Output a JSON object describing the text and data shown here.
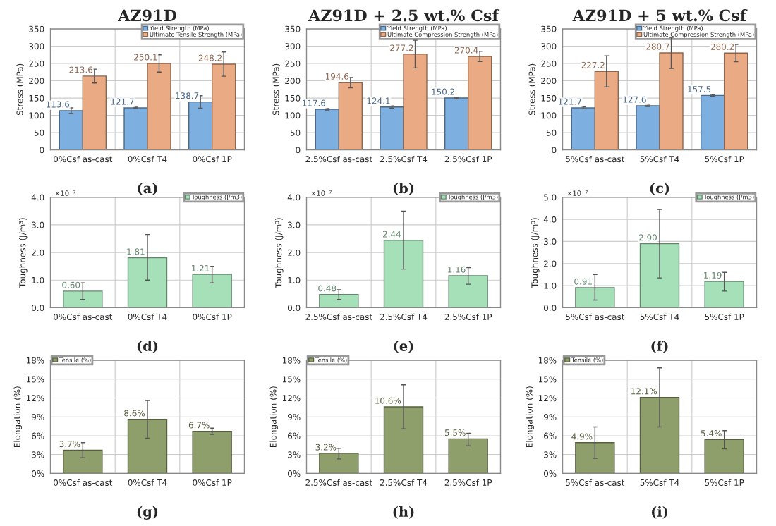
{
  "chart_data": [
    {
      "type": "bar",
      "title": "AZ91D",
      "ylabel": "Stress (MPa)",
      "categories": [
        "0%Csf as-cast",
        "0%Csf T4",
        "0%Csf 1P"
      ],
      "series": [
        {
          "name": "Yield Strength (MPa)",
          "color": "#7dafe0",
          "values": [
            113.6,
            121.7,
            138.7
          ],
          "errors": [
            8,
            2,
            18
          ]
        },
        {
          "name": "Ultimate Tensile Strength (MPa)",
          "color": "#eaaa84",
          "values": [
            213.6,
            250.1,
            248.2
          ],
          "errors": [
            20,
            25,
            35
          ]
        }
      ],
      "ylim": [
        0,
        350
      ],
      "yticks": [
        0,
        50,
        100,
        150,
        200,
        250,
        300,
        350
      ],
      "grid": true,
      "legend": "top right",
      "data_labels": true,
      "annotations": [
        "(a)"
      ]
    },
    {
      "type": "bar",
      "title": "AZ91D + 2.5 wt.% Csf",
      "ylabel": "Stress (MPa)",
      "categories": [
        "2.5%Csf as-cast",
        "2.5%Csf T4",
        "2.5%Csf 1P"
      ],
      "series": [
        {
          "name": "Yield Strength (MPa)",
          "color": "#7dafe0",
          "values": [
            117.6,
            124.1,
            150.2
          ],
          "errors": [
            2,
            3,
            2
          ]
        },
        {
          "name": "Ultimate Compression Strength (MPa)",
          "color": "#eaaa84",
          "values": [
            194.6,
            277.2,
            270.4
          ],
          "errors": [
            15,
            40,
            15
          ]
        }
      ],
      "ylim": [
        0,
        350
      ],
      "yticks": [
        0,
        50,
        100,
        150,
        200,
        250,
        300,
        350
      ],
      "grid": true,
      "legend": "top right",
      "data_labels": true,
      "annotations": [
        "(b)"
      ]
    },
    {
      "type": "bar",
      "title": "AZ91D + 5 wt.% Csf",
      "ylabel": "Stress (MPa)",
      "categories": [
        "5%Csf as-cast",
        "5%Csf T4",
        "5%Csf 1P"
      ],
      "series": [
        {
          "name": "Yield Strength (MPa)",
          "color": "#7dafe0",
          "values": [
            121.7,
            127.6,
            157.5
          ],
          "errors": [
            3,
            2,
            2
          ]
        },
        {
          "name": "Ultimate Compression Strength (MPa)",
          "color": "#eaaa84",
          "values": [
            227.2,
            280.7,
            280.2
          ],
          "errors": [
            45,
            45,
            25
          ]
        }
      ],
      "ylim": [
        0,
        350
      ],
      "yticks": [
        0,
        50,
        100,
        150,
        200,
        250,
        300,
        350
      ],
      "grid": true,
      "legend": "top right",
      "data_labels": true,
      "annotations": [
        "(c)"
      ]
    },
    {
      "type": "bar",
      "ylabel": "Toughness (J/m³)",
      "categories": [
        "0%Csf as-cast",
        "0%Csf T4",
        "0%Csf 1P"
      ],
      "series": [
        {
          "name": "Toughness (J/m3)",
          "color": "#a6e0b8",
          "values": [
            0.6,
            1.81,
            1.21
          ],
          "errors": [
            [
              0.3,
              0.9
            ],
            [
              1.0,
              2.65
            ],
            [
              0.9,
              1.5
            ]
          ],
          "value_labels": [
            "0.60",
            "1.81",
            "1.21"
          ]
        }
      ],
      "ylim": [
        0,
        4
      ],
      "yticks": [
        {
          "value": 0,
          "label": "0.0"
        },
        {
          "value": 1,
          "label": "1.0"
        },
        {
          "value": 2,
          "label": "2.0"
        },
        {
          "value": 3,
          "label": "3.0"
        },
        {
          "value": 4,
          "label": "4.0"
        }
      ],
      "grid": true,
      "legend": "top right",
      "annotations": [
        "(d)",
        "×10⁻⁷"
      ]
    },
    {
      "type": "bar",
      "ylabel": "Toughness (J/m³)",
      "categories": [
        "2.5%Csf as-cast",
        "2.5%Csf T4",
        "2.5%Csf 1P"
      ],
      "series": [
        {
          "name": "Toughness (J/m3)",
          "color": "#a6e0b8",
          "values": [
            0.48,
            2.44,
            1.16
          ],
          "errors": [
            [
              0.3,
              0.65
            ],
            [
              1.4,
              3.5
            ],
            [
              0.85,
              1.45
            ]
          ],
          "value_labels": [
            "0.48",
            "2.44",
            "1.16"
          ]
        }
      ],
      "ylim": [
        0,
        4
      ],
      "yticks": [
        {
          "value": 0,
          "label": "0.0"
        },
        {
          "value": 1,
          "label": "1.0"
        },
        {
          "value": 2,
          "label": "2.0"
        },
        {
          "value": 3,
          "label": "3.0"
        },
        {
          "value": 4,
          "label": "4.0"
        }
      ],
      "grid": true,
      "legend": "top right",
      "annotations": [
        "(e)",
        "×10⁻⁷"
      ]
    },
    {
      "type": "bar",
      "ylabel": "Toughness (J/m³)",
      "categories": [
        "5%Csf as-cast",
        "5%Csf T4",
        "5%Csf 1P"
      ],
      "series": [
        {
          "name": "Toughness (J/m3)",
          "color": "#a6e0b8",
          "values": [
            0.91,
            2.9,
            1.19
          ],
          "errors": [
            [
              0.35,
              1.5
            ],
            [
              1.35,
              4.45
            ],
            [
              0.75,
              1.6
            ]
          ],
          "value_labels": [
            "0.91",
            "2.90",
            "1.19"
          ]
        }
      ],
      "ylim": [
        0,
        5
      ],
      "yticks": [
        {
          "value": 0,
          "label": "0.0"
        },
        {
          "value": 1,
          "label": "1.0"
        },
        {
          "value": 2,
          "label": "2.0"
        },
        {
          "value": 3,
          "label": "3.0"
        },
        {
          "value": 4,
          "label": "4.0"
        },
        {
          "value": 5,
          "label": "5.0"
        }
      ],
      "grid": true,
      "legend": "top right",
      "annotations": [
        "(f)",
        "×10⁻⁷"
      ]
    },
    {
      "type": "bar",
      "ylabel": "Elongation (%)",
      "categories": [
        "0%Csf as-cast",
        "0%Csf T4",
        "0%Csf 1P"
      ],
      "series": [
        {
          "name": "Tensile (%)",
          "color": "#8f9f6c",
          "values": [
            3.7,
            8.6,
            6.7
          ],
          "errors": [
            [
              2.5,
              4.9
            ],
            [
              5.6,
              11.6
            ],
            [
              6.2,
              7.2
            ]
          ],
          "value_labels": [
            "3.7%",
            "8.6%",
            "6.7%"
          ]
        }
      ],
      "ylim": [
        0,
        18
      ],
      "yticks": [
        {
          "value": 0,
          "label": "0%"
        },
        {
          "value": 3,
          "label": "3%"
        },
        {
          "value": 6,
          "label": "6%"
        },
        {
          "value": 9,
          "label": "9%"
        },
        {
          "value": 12,
          "label": "12%"
        },
        {
          "value": 15,
          "label": "15%"
        },
        {
          "value": 18,
          "label": "18%"
        }
      ],
      "grid": true,
      "legend": "top left",
      "annotations": [
        "(g)"
      ]
    },
    {
      "type": "bar",
      "ylabel": "Elongation (%)",
      "categories": [
        "2.5%Csf as-cast",
        "2.5%Csf T4",
        "2.5%Csf 1P"
      ],
      "series": [
        {
          "name": "Tensile (%)",
          "color": "#8f9f6c",
          "values": [
            3.2,
            10.6,
            5.5
          ],
          "errors": [
            [
              2.3,
              4.0
            ],
            [
              7.1,
              14.1
            ],
            [
              4.4,
              6.4
            ]
          ],
          "value_labels": [
            "3.2%",
            "10.6%",
            "5.5%"
          ]
        }
      ],
      "ylim": [
        0,
        18
      ],
      "yticks": [
        {
          "value": 0,
          "label": "0%"
        },
        {
          "value": 3,
          "label": "3%"
        },
        {
          "value": 6,
          "label": "6%"
        },
        {
          "value": 9,
          "label": "9%"
        },
        {
          "value": 12,
          "label": "12%"
        },
        {
          "value": 15,
          "label": "15%"
        },
        {
          "value": 18,
          "label": "18%"
        }
      ],
      "grid": true,
      "legend": "top left",
      "annotations": [
        "(h)"
      ]
    },
    {
      "type": "bar",
      "ylabel": "Elongation (%)",
      "categories": [
        "5%Csf as-cast",
        "5%Csf T4",
        "5%Csf 1P"
      ],
      "series": [
        {
          "name": "Tensile (%)",
          "color": "#8f9f6c",
          "values": [
            4.9,
            12.1,
            5.4
          ],
          "errors": [
            [
              2.4,
              7.4
            ],
            [
              7.4,
              16.8
            ],
            [
              3.9,
              6.8
            ]
          ],
          "value_labels": [
            "4.9%",
            "12.1%",
            "5.4%"
          ]
        }
      ],
      "ylim": [
        0,
        18
      ],
      "yticks": [
        {
          "value": 0,
          "label": "0%"
        },
        {
          "value": 3,
          "label": "3%"
        },
        {
          "value": 6,
          "label": "6%"
        },
        {
          "value": 9,
          "label": "9%"
        },
        {
          "value": 12,
          "label": "12%"
        },
        {
          "value": 15,
          "label": "15%"
        },
        {
          "value": 18,
          "label": "18%"
        }
      ],
      "grid": true,
      "legend": "top left",
      "annotations": [
        "(i)"
      ]
    }
  ]
}
